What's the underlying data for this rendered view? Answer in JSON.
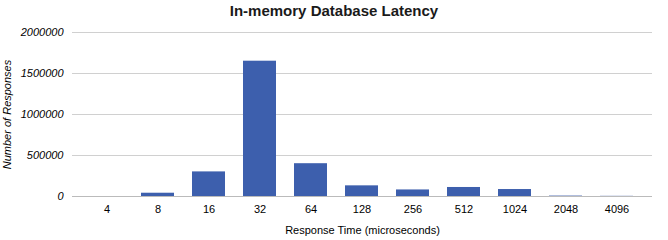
{
  "chart_data": {
    "type": "bar",
    "title": "In-memory Database Latency",
    "xlabel": "Response Time (microseconds)",
    "ylabel": "Number of Responses",
    "categories": [
      "4",
      "8",
      "16",
      "32",
      "64",
      "128",
      "256",
      "512",
      "1024",
      "2048",
      "4096"
    ],
    "values": [
      0,
      40000,
      300000,
      1650000,
      400000,
      130000,
      80000,
      110000,
      85000,
      5000,
      2000
    ],
    "color": "#3d5fad",
    "ylim": [
      0,
      2000000
    ],
    "yticks": [
      0,
      500000,
      1000000,
      1500000,
      2000000
    ],
    "grid": true
  }
}
